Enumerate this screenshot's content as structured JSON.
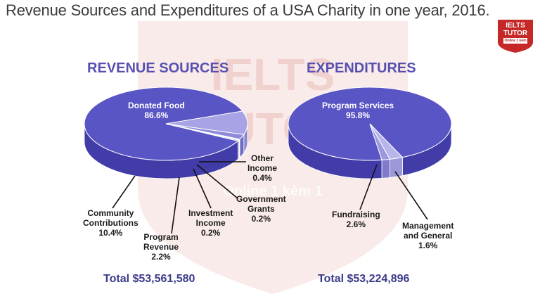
{
  "title": "Revenue Sources and Expenditures of a USA Charity in one year, 2016.",
  "watermark": {
    "line1": "IELTS",
    "line2": "TUTOR",
    "line3": "Online 1 kèm 1"
  },
  "logo": {
    "line1": "IELTS",
    "line2": "TUTOR",
    "sub": "Online 1 kèm 1"
  },
  "colors": {
    "pie_top": "#5a55c4",
    "pie_side": "#423ca8",
    "heading": "#5750b0",
    "total": "#3a3a8a",
    "logo": "#c62828"
  },
  "chart_data": [
    {
      "type": "pie",
      "title": "REVENUE SOURCES",
      "total": "Total $53,561,580",
      "slices": [
        {
          "label": "Donated Food",
          "value": 86.6,
          "value_label": "86.6%"
        },
        {
          "label": "Community Contributions",
          "value": 10.4,
          "value_label": "10.4%"
        },
        {
          "label": "Program Revenue",
          "value": 2.2,
          "value_label": "2.2%"
        },
        {
          "label": "Investment Income",
          "value": 0.2,
          "value_label": "0.2%"
        },
        {
          "label": "Government Grants",
          "value": 0.2,
          "value_label": "0.2%"
        },
        {
          "label": "Other Income",
          "value": 0.4,
          "value_label": "0.4%"
        }
      ]
    },
    {
      "type": "pie",
      "title": "EXPENDITURES",
      "total": "Total $53,224,896",
      "slices": [
        {
          "label": "Program Services",
          "value": 95.8,
          "value_label": "95.8%"
        },
        {
          "label": "Fundraising",
          "value": 2.6,
          "value_label": "2.6%"
        },
        {
          "label": "Management and General",
          "value": 1.6,
          "value_label": "1.6%"
        }
      ]
    }
  ]
}
